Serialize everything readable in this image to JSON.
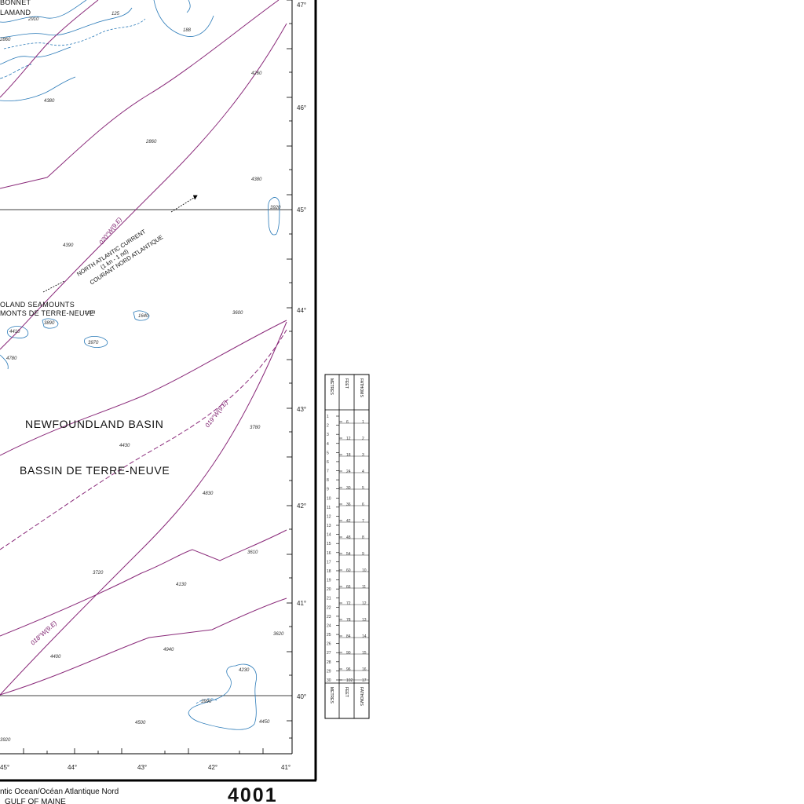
{
  "map": {
    "names": {
      "bonnet": "BONNET",
      "flamand": "LAMAND",
      "seamounts_en": "OLAND  SEAMOUNTS",
      "seamounts_fr": "MONTS  DE  TERRE-NEUVE",
      "basin_en": "NEWFOUNDLAND BASIN",
      "basin_fr": "BASSIN DE TERRE-NEUVE"
    },
    "current": {
      "line1": "NORTH ATLANTIC CURRENT",
      "line2": "(1 kn - 1 nd)",
      "line3": "COURANT NORD ATLANTIQUE"
    },
    "isogonic_lines": [
      {
        "label": "020°W(9.E)"
      },
      {
        "label": "019°W(9.E)"
      },
      {
        "label": "018°W(9.E)"
      }
    ],
    "latitude_labels": [
      "47°",
      "46°",
      "45°",
      "44°",
      "43°",
      "42°",
      "41°",
      "40°"
    ],
    "longitude_labels": [
      "45°",
      "44°",
      "43°",
      "42°",
      "41°"
    ],
    "soundings": [
      "125",
      "2910",
      "188",
      "2860",
      "4260",
      "4380",
      "2860",
      "4380",
      "4390",
      "3600",
      "1640",
      "4410",
      "3890",
      "3970",
      "3780",
      "4430",
      "4830",
      "3610",
      "3720",
      "4130",
      "3620",
      "4400",
      "4940",
      "4230",
      "3990",
      "4500",
      "4450",
      "3920",
      "4780",
      "3920",
      "1004"
    ],
    "footer": {
      "ocean": "ntic Ocean/Océan Atlantique Nord",
      "gulf": "GULF OF MAINE",
      "chart_number": "4001"
    },
    "colors": {
      "contour": "#2a7ab8",
      "isogonic": "#8a2a7a",
      "graticule": "#000000"
    }
  },
  "depth_scale": {
    "headers": {
      "metres": "METRES",
      "feet": "FEET",
      "fathoms": "FATHOMS"
    },
    "metres": [
      "1",
      "2",
      "3",
      "4",
      "5",
      "6",
      "7",
      "8",
      "9",
      "10",
      "11",
      "12",
      "13",
      "14",
      "15",
      "16",
      "17",
      "18",
      "19",
      "20",
      "21",
      "22",
      "23",
      "24",
      "25",
      "26",
      "27",
      "28",
      "29",
      "30"
    ],
    "feet": [
      "6",
      "12",
      "18",
      "24",
      "30",
      "36",
      "42",
      "48",
      "54",
      "60",
      "66",
      "72",
      "78",
      "84",
      "90",
      "96",
      "102"
    ],
    "fathoms": [
      "1",
      "2",
      "3",
      "4",
      "5",
      "6",
      "7",
      "8",
      "9",
      "10",
      "11",
      "12",
      "13",
      "14",
      "15",
      "16",
      "17"
    ],
    "footers": {
      "metres": "METRES",
      "feet": "FEET",
      "fathoms": "FATHOMS"
    }
  }
}
